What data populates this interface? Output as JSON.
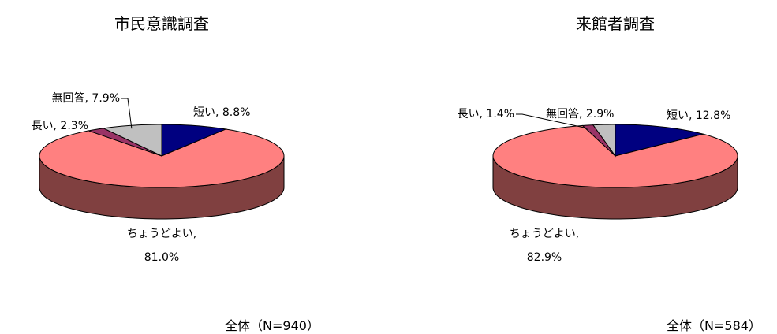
{
  "chart_data": [
    {
      "type": "pie",
      "title": "市民意識調査",
      "note": "全体（N=940）",
      "three_d": true,
      "values": [
        8.8,
        81.0,
        2.3,
        7.9
      ],
      "value_labels": [
        "短い, 8.8%",
        "ちょうどよい, 81.0%",
        "長い, 2.3%",
        "無回答, 7.9%"
      ],
      "colors": [
        "#000080",
        "#ff8080",
        "#993366",
        "#c0c0c0"
      ]
    },
    {
      "type": "pie",
      "title": "来館者調査",
      "note": "全体（N=584）",
      "three_d": true,
      "values": [
        12.8,
        82.9,
        1.4,
        2.9
      ],
      "value_labels": [
        "短い, 12.8%",
        "ちょうどよい, 82.9%",
        "長い, 1.4%",
        "無回答, 2.9%"
      ],
      "colors": [
        "#000080",
        "#ff8080",
        "#993366",
        "#c0c0c0"
      ]
    }
  ]
}
